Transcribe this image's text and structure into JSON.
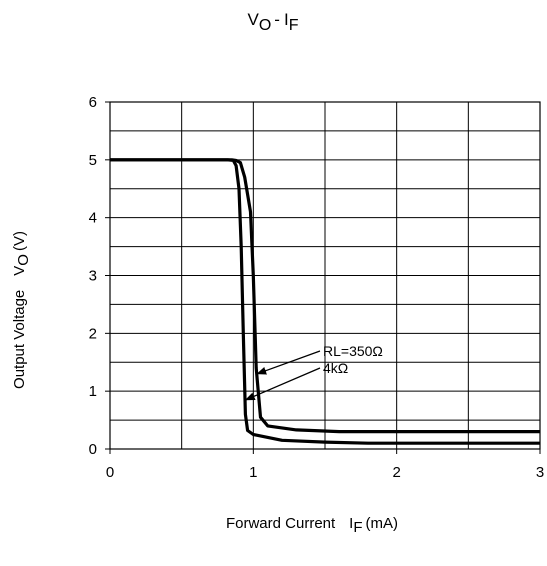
{
  "chart_data": {
    "type": "line",
    "title": "VO-IF",
    "title_parts": {
      "v": "V",
      "o": "O",
      "dash": "-",
      "i": "I",
      "f": "F"
    },
    "xlabel": "Forward Current",
    "xlabel_symbol": {
      "main": "I",
      "sub": "F",
      "unit": "(mA)"
    },
    "ylabel": "Output Voltage",
    "ylabel_symbol": {
      "main": "V",
      "sub": "O",
      "unit": "(V)"
    },
    "xlim": [
      0,
      3
    ],
    "ylim": [
      0,
      6
    ],
    "x_ticks": [
      0,
      1,
      2,
      3
    ],
    "y_ticks": [
      0,
      1,
      2,
      3,
      4,
      5,
      6
    ],
    "x_tick_labels": [
      "0",
      "1",
      "2",
      "3"
    ],
    "y_tick_labels": [
      "0",
      "1",
      "2",
      "3",
      "4",
      "5",
      "6"
    ],
    "x_minor_step": 0.5,
    "y_minor_step": 0.5,
    "grid": true,
    "series": [
      {
        "name": "RL=350Ω",
        "x": [
          0,
          0.85,
          0.88,
          0.91,
          0.94,
          0.96,
          0.98,
          1.0,
          1.02,
          1.05,
          1.1,
          1.3,
          1.6,
          3.0
        ],
        "y": [
          5.0,
          5.0,
          4.99,
          4.95,
          4.7,
          4.4,
          4.1,
          3.0,
          1.4,
          0.55,
          0.4,
          0.33,
          0.3,
          0.3
        ]
      },
      {
        "name": "4kΩ",
        "x": [
          0,
          0.82,
          0.86,
          0.88,
          0.9,
          0.915,
          0.93,
          0.945,
          0.96,
          1.0,
          1.2,
          1.5,
          1.8,
          3.0
        ],
        "y": [
          5.0,
          5.0,
          4.99,
          4.9,
          4.5,
          3.5,
          2.0,
          0.6,
          0.32,
          0.25,
          0.15,
          0.12,
          0.1,
          0.1
        ]
      }
    ],
    "annotations": [
      {
        "text": "RL=350Ω",
        "series": 0,
        "point": [
          1.02,
          1.3
        ]
      },
      {
        "text": "4kΩ",
        "series": 1,
        "point": [
          0.94,
          0.85
        ]
      }
    ]
  }
}
